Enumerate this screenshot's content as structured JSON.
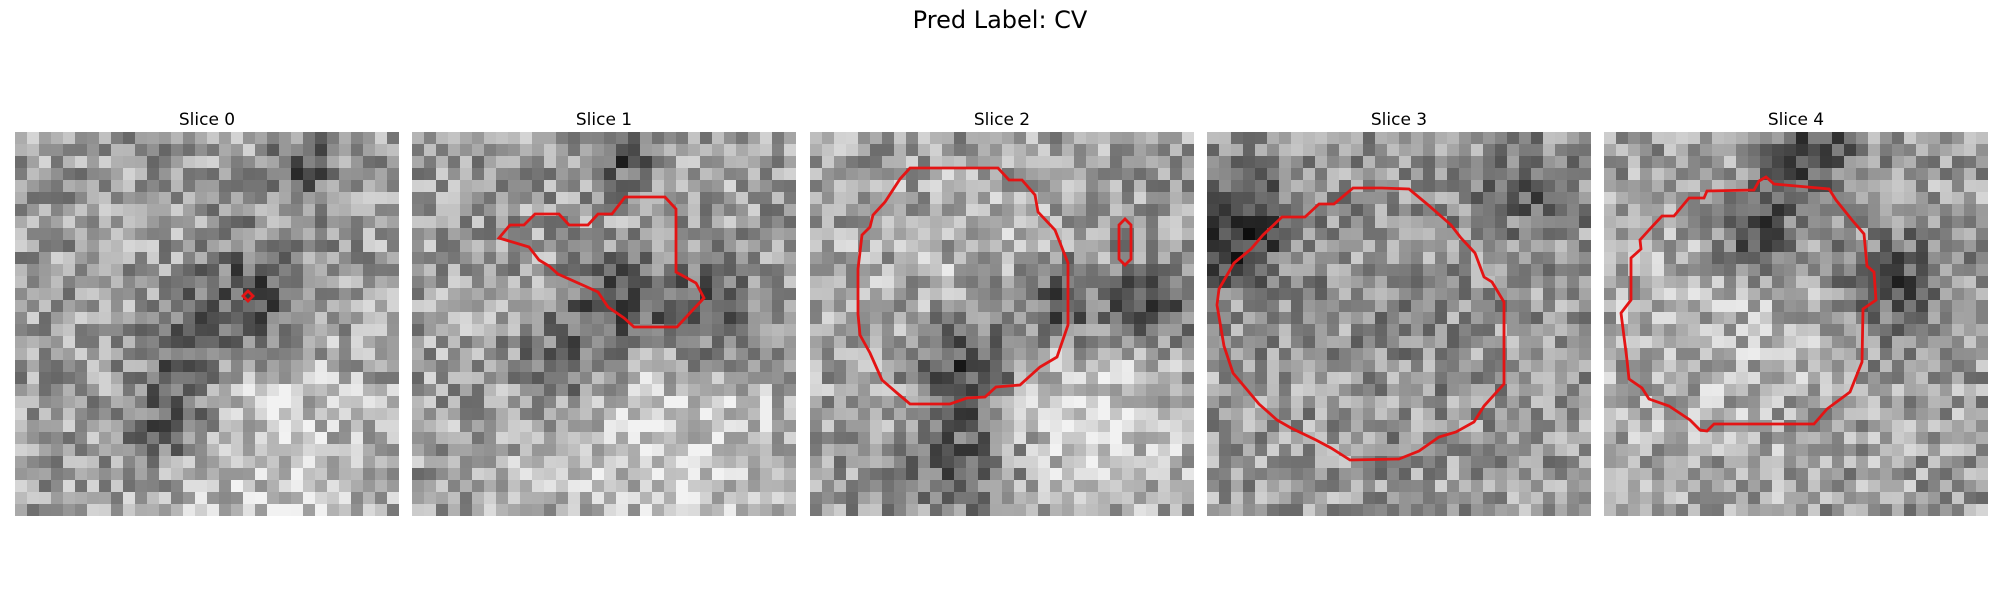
{
  "figure": {
    "title": "Pred Label: CV",
    "colors": {
      "contour": "#e41414",
      "background": "#ffffff"
    },
    "panels": [
      {
        "title": "Slice 0"
      },
      {
        "title": "Slice 1"
      },
      {
        "title": "Slice 2"
      },
      {
        "title": "Slice 3"
      },
      {
        "title": "Slice 4"
      }
    ]
  }
}
